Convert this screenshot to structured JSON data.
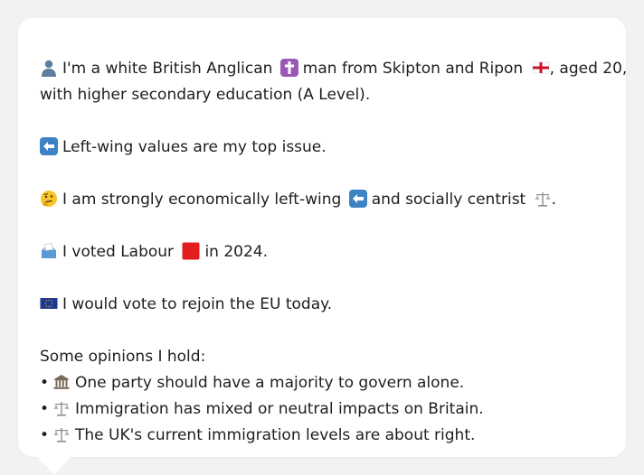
{
  "intro": {
    "part1": "I'm a white British Anglican",
    "part2": "man from Skipton and Ripon",
    "part3": ", aged 20,",
    "part4": "with higher secondary education (A Level)."
  },
  "top_issue": "Left-wing values are my top issue.",
  "econ": {
    "part1": "I am strongly economically left-wing",
    "part2": "and socially centrist",
    "part3": "."
  },
  "vote": {
    "part1": "I voted Labour",
    "part2": "in 2024."
  },
  "eu": "I would vote to rejoin the EU today.",
  "opinions": {
    "heading": "Some opinions I hold:",
    "items": [
      "One party should have a majority to govern alone.",
      "Immigration has mixed or neutral impacts on Britain.",
      "The UK's current immigration levels are about right."
    ]
  },
  "colors": {
    "labour_red": "#e11d1d",
    "cross_purple": "#9b59b6",
    "arrow_blue": "#3d82c4",
    "eu_blue": "#1f3a93"
  }
}
